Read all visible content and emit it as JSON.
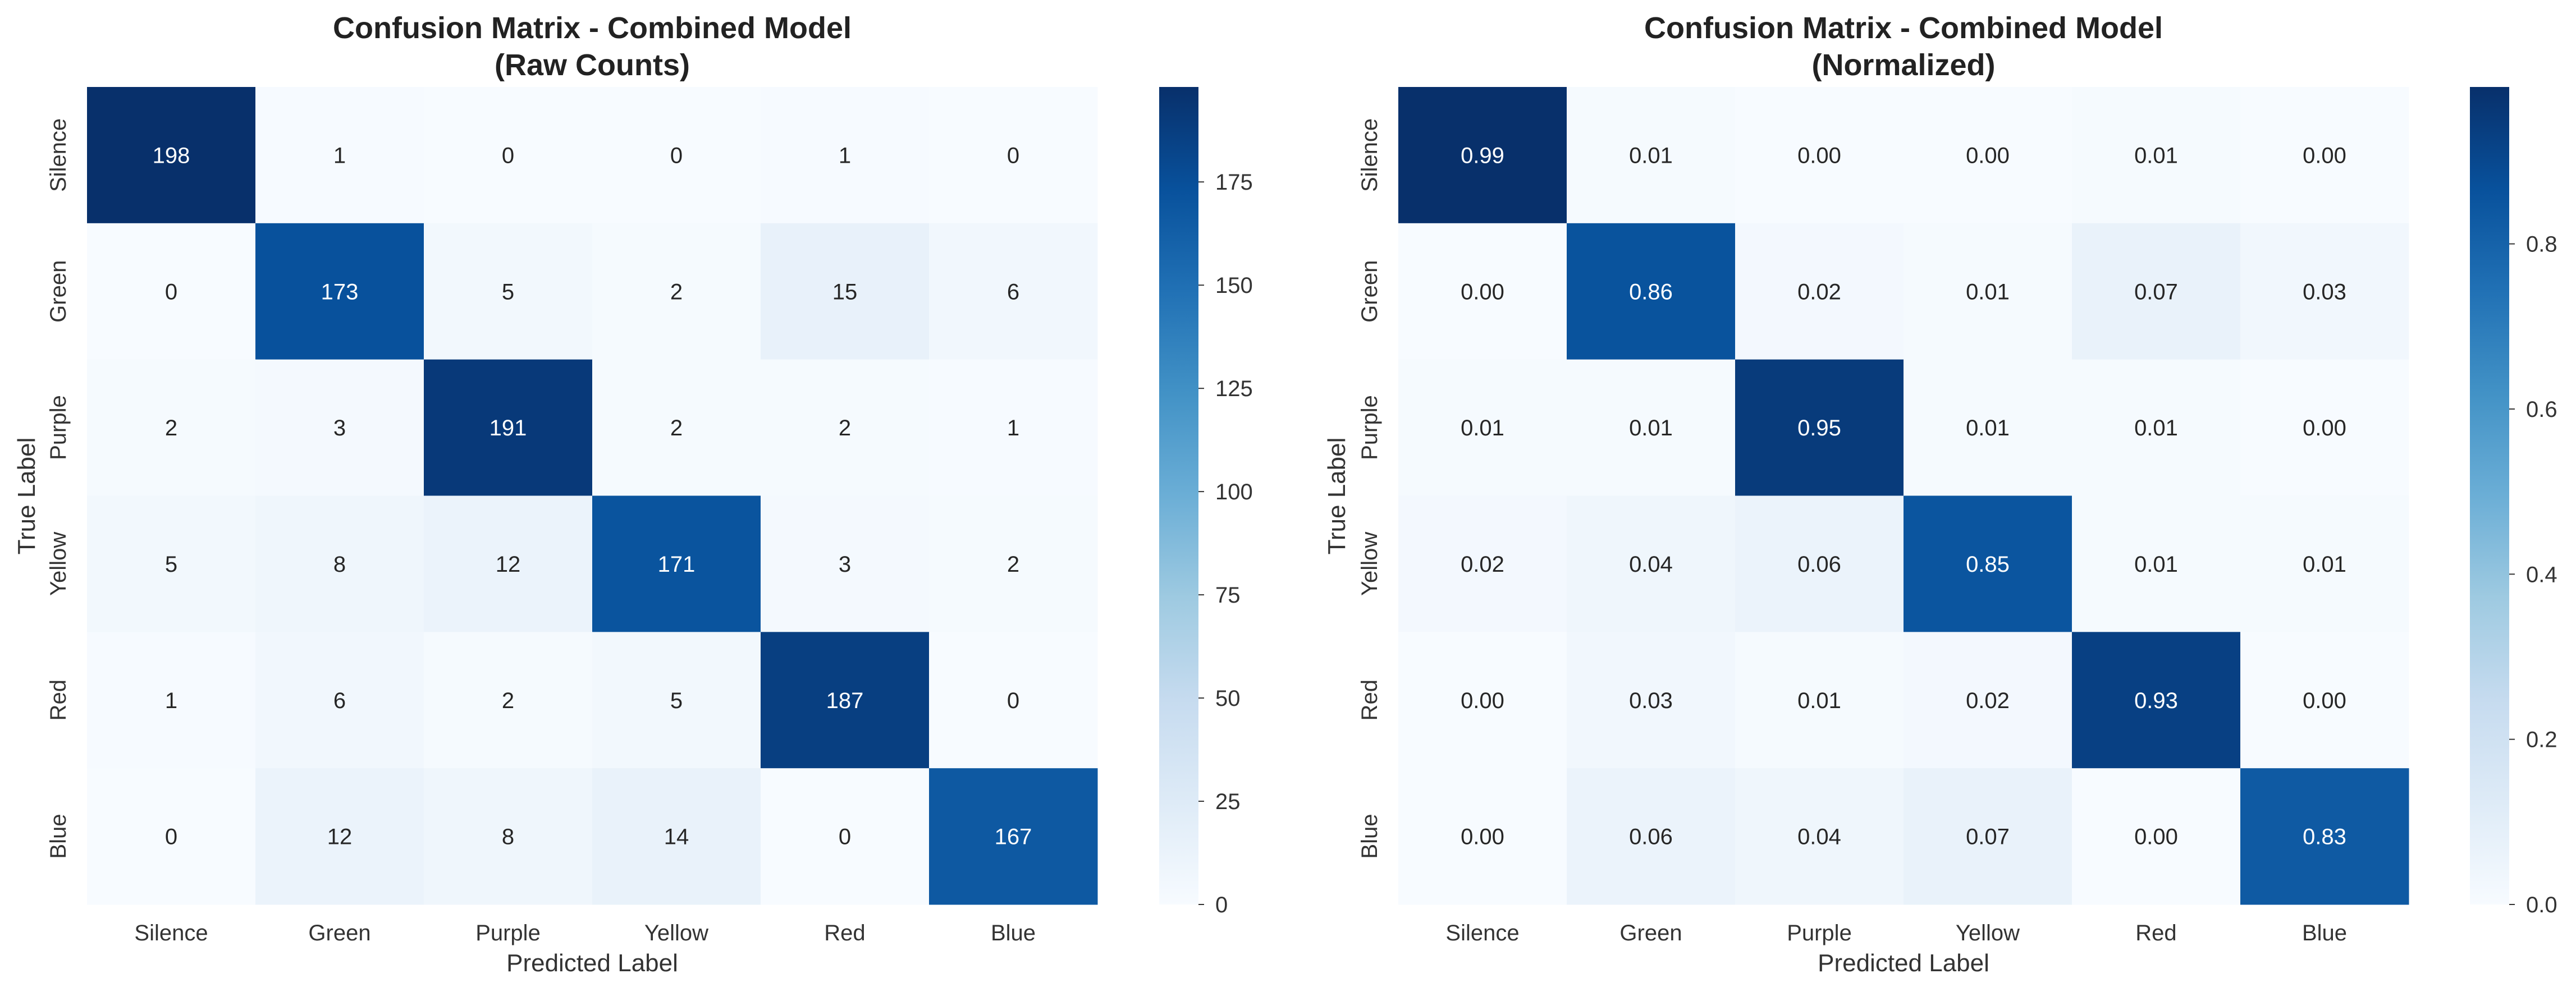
{
  "chart_data": [
    {
      "type": "heatmap",
      "title": "Confusion Matrix - Combined Model",
      "subtitle": "(Raw Counts)",
      "xlabel": "Predicted Label",
      "ylabel": "True Label",
      "x_categories": [
        "Silence",
        "Green",
        "Purple",
        "Yellow",
        "Red",
        "Blue"
      ],
      "y_categories": [
        "Silence",
        "Green",
        "Purple",
        "Yellow",
        "Red",
        "Blue"
      ],
      "values": [
        [
          198,
          1,
          0,
          0,
          1,
          0
        ],
        [
          0,
          173,
          5,
          2,
          15,
          6
        ],
        [
          2,
          3,
          191,
          2,
          2,
          1
        ],
        [
          5,
          8,
          12,
          171,
          3,
          2
        ],
        [
          1,
          6,
          2,
          5,
          187,
          0
        ],
        [
          0,
          12,
          8,
          14,
          0,
          167
        ]
      ],
      "value_format": "int",
      "colormap": "Blues",
      "colorbar": {
        "min": 0,
        "max": 198,
        "ticks": [
          0,
          25,
          50,
          75,
          100,
          125,
          150,
          175
        ],
        "tick_labels": [
          "0",
          "25",
          "50",
          "75",
          "100",
          "125",
          "150",
          "175"
        ]
      },
      "grid": false
    },
    {
      "type": "heatmap",
      "title": "Confusion Matrix - Combined Model",
      "subtitle": "(Normalized)",
      "xlabel": "Predicted Label",
      "ylabel": "True Label",
      "x_categories": [
        "Silence",
        "Green",
        "Purple",
        "Yellow",
        "Red",
        "Blue"
      ],
      "y_categories": [
        "Silence",
        "Green",
        "Purple",
        "Yellow",
        "Red",
        "Blue"
      ],
      "values": [
        [
          0.99,
          0.01,
          0.0,
          0.0,
          0.01,
          0.0
        ],
        [
          0.0,
          0.86,
          0.02,
          0.01,
          0.07,
          0.03
        ],
        [
          0.01,
          0.01,
          0.95,
          0.01,
          0.01,
          0.0
        ],
        [
          0.02,
          0.04,
          0.06,
          0.85,
          0.01,
          0.01
        ],
        [
          0.0,
          0.03,
          0.01,
          0.02,
          0.93,
          0.0
        ],
        [
          0.0,
          0.06,
          0.04,
          0.07,
          0.0,
          0.83
        ]
      ],
      "value_format": "2dp",
      "colormap": "Blues",
      "colorbar": {
        "min": 0,
        "max": 0.99,
        "ticks": [
          0.0,
          0.2,
          0.4,
          0.6,
          0.8
        ],
        "tick_labels": [
          "0.0",
          "0.2",
          "0.4",
          "0.6",
          "0.8"
        ]
      },
      "grid": false
    }
  ]
}
